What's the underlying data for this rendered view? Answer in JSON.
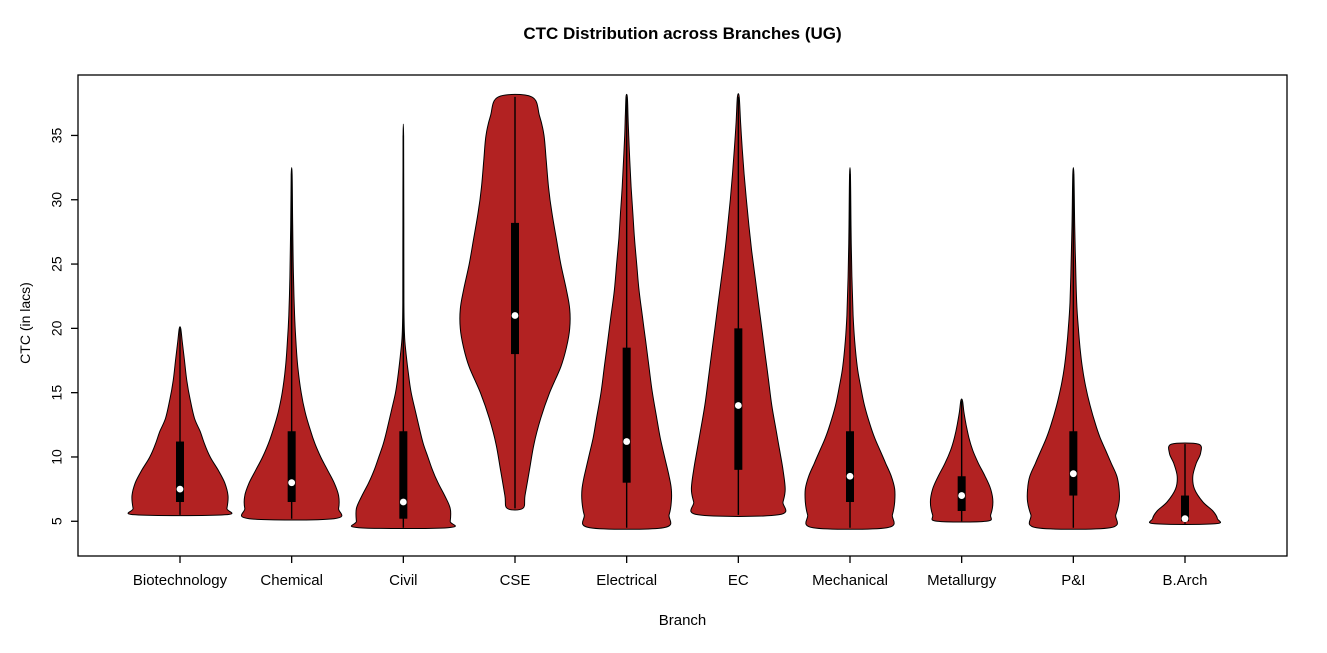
{
  "chart_data": {
    "type": "violin",
    "title": "CTC Distribution across Branches (UG)",
    "xlabel": "Branch",
    "ylabel": "CTC (in lacs)",
    "ylim": [
      2.3,
      39.7
    ],
    "yticks": [
      5,
      10,
      15,
      20,
      25,
      30,
      35
    ],
    "grid": false,
    "legend": "none",
    "fill_color": "#B22222",
    "outline_color": "#000000",
    "box_color": "#000000",
    "median_color": "#ffffff",
    "categories": [
      "Biotechnology",
      "Chemical",
      "Civil",
      "CSE",
      "Electrical",
      "EC",
      "Mechanical",
      "Metallurgy",
      "P&I",
      "B.Arch"
    ],
    "violins": [
      {
        "branch": "Biotechnology",
        "min": 5.5,
        "max": 20,
        "q1": 6.5,
        "q3": 11.2,
        "median": 7.5,
        "shape": [
          [
            5.5,
            0.4
          ],
          [
            6.0,
            0.42
          ],
          [
            7.0,
            0.43
          ],
          [
            8.0,
            0.4
          ],
          [
            9.0,
            0.34
          ],
          [
            10.0,
            0.27
          ],
          [
            11.0,
            0.22
          ],
          [
            12.0,
            0.18
          ],
          [
            13.0,
            0.13
          ],
          [
            14.5,
            0.09
          ],
          [
            16.0,
            0.06
          ],
          [
            17.5,
            0.04
          ],
          [
            19.0,
            0.02
          ],
          [
            20.0,
            0.006
          ]
        ]
      },
      {
        "branch": "Chemical",
        "min": 5.2,
        "max": 32,
        "q1": 6.5,
        "q3": 12,
        "median": 8,
        "shape": [
          [
            5.2,
            0.38
          ],
          [
            6.0,
            0.42
          ],
          [
            7.0,
            0.42
          ],
          [
            8.0,
            0.38
          ],
          [
            9.0,
            0.32
          ],
          [
            10.0,
            0.26
          ],
          [
            11.0,
            0.21
          ],
          [
            12.0,
            0.17
          ],
          [
            13.5,
            0.12
          ],
          [
            15.0,
            0.085
          ],
          [
            17.0,
            0.055
          ],
          [
            19.0,
            0.038
          ],
          [
            21.0,
            0.026
          ],
          [
            24.0,
            0.016
          ],
          [
            28.0,
            0.009
          ],
          [
            32.0,
            0.004
          ]
        ]
      },
      {
        "branch": "Civil",
        "min": 4.5,
        "max": 35,
        "q1": 5.2,
        "q3": 12,
        "median": 6.5,
        "shape": [
          [
            4.5,
            0.4
          ],
          [
            5.0,
            0.42
          ],
          [
            6.0,
            0.42
          ],
          [
            7.0,
            0.37
          ],
          [
            8.0,
            0.31
          ],
          [
            9.0,
            0.26
          ],
          [
            10.0,
            0.22
          ],
          [
            11.0,
            0.18
          ],
          [
            12.0,
            0.15
          ],
          [
            13.5,
            0.11
          ],
          [
            15.0,
            0.07
          ],
          [
            16.5,
            0.045
          ],
          [
            18.0,
            0.025
          ],
          [
            19.5,
            0.01
          ],
          [
            22.0,
            0.005
          ],
          [
            28.0,
            0.004
          ],
          [
            35.0,
            0.002
          ]
        ]
      },
      {
        "branch": "CSE",
        "min": 6,
        "max": 38,
        "q1": 18,
        "q3": 28.2,
        "median": 21,
        "shape": [
          [
            6.0,
            0.07
          ],
          [
            7.0,
            0.09
          ],
          [
            9.0,
            0.13
          ],
          [
            11.0,
            0.17
          ],
          [
            13.0,
            0.23
          ],
          [
            15.0,
            0.31
          ],
          [
            17.0,
            0.41
          ],
          [
            18.5,
            0.46
          ],
          [
            20.0,
            0.49
          ],
          [
            21.5,
            0.49
          ],
          [
            23.0,
            0.46
          ],
          [
            25.0,
            0.41
          ],
          [
            27.0,
            0.37
          ],
          [
            29.0,
            0.33
          ],
          [
            31.0,
            0.3
          ],
          [
            33.0,
            0.28
          ],
          [
            35.0,
            0.26
          ],
          [
            36.5,
            0.22
          ],
          [
            38.0,
            0.15
          ]
        ]
      },
      {
        "branch": "Electrical",
        "min": 4.5,
        "max": 38,
        "q1": 8,
        "q3": 18.5,
        "median": 11.2,
        "shape": [
          [
            4.5,
            0.33
          ],
          [
            5.5,
            0.38
          ],
          [
            6.5,
            0.4
          ],
          [
            7.5,
            0.4
          ],
          [
            8.5,
            0.38
          ],
          [
            10.0,
            0.34
          ],
          [
            11.5,
            0.3
          ],
          [
            13.0,
            0.27
          ],
          [
            15.0,
            0.23
          ],
          [
            17.0,
            0.2
          ],
          [
            19.0,
            0.17
          ],
          [
            21.0,
            0.14
          ],
          [
            23.0,
            0.11
          ],
          [
            25.0,
            0.09
          ],
          [
            27.0,
            0.07
          ],
          [
            29.0,
            0.055
          ],
          [
            31.0,
            0.04
          ],
          [
            33.0,
            0.028
          ],
          [
            35.0,
            0.018
          ],
          [
            36.5,
            0.012
          ],
          [
            38.0,
            0.006
          ]
        ]
      },
      {
        "branch": "EC",
        "min": 5.5,
        "max": 38,
        "q1": 9,
        "q3": 20,
        "median": 14,
        "shape": [
          [
            5.5,
            0.36
          ],
          [
            6.5,
            0.4
          ],
          [
            7.5,
            0.42
          ],
          [
            9.0,
            0.4
          ],
          [
            10.5,
            0.37
          ],
          [
            12.0,
            0.34
          ],
          [
            14.0,
            0.3
          ],
          [
            16.0,
            0.27
          ],
          [
            18.0,
            0.24
          ],
          [
            20.0,
            0.21
          ],
          [
            22.0,
            0.18
          ],
          [
            24.0,
            0.15
          ],
          [
            26.0,
            0.12
          ],
          [
            28.0,
            0.095
          ],
          [
            30.0,
            0.072
          ],
          [
            32.0,
            0.052
          ],
          [
            34.0,
            0.035
          ],
          [
            36.0,
            0.02
          ],
          [
            38.0,
            0.008
          ]
        ]
      },
      {
        "branch": "Mechanical",
        "min": 4.5,
        "max": 32,
        "q1": 6.5,
        "q3": 12,
        "median": 8.5,
        "shape": [
          [
            4.5,
            0.33
          ],
          [
            5.5,
            0.38
          ],
          [
            6.5,
            0.4
          ],
          [
            7.5,
            0.4
          ],
          [
            8.5,
            0.37
          ],
          [
            9.5,
            0.32
          ],
          [
            10.5,
            0.27
          ],
          [
            11.5,
            0.22
          ],
          [
            12.5,
            0.18
          ],
          [
            14.0,
            0.13
          ],
          [
            15.5,
            0.095
          ],
          [
            17.0,
            0.065
          ],
          [
            19.0,
            0.042
          ],
          [
            21.0,
            0.028
          ],
          [
            24.0,
            0.017
          ],
          [
            28.0,
            0.009
          ],
          [
            32.0,
            0.004
          ]
        ]
      },
      {
        "branch": "Metallurgy",
        "min": 5,
        "max": 14.4,
        "q1": 5.8,
        "q3": 8.5,
        "median": 7,
        "shape": [
          [
            5.0,
            0.22
          ],
          [
            5.5,
            0.26
          ],
          [
            6.5,
            0.28
          ],
          [
            7.5,
            0.26
          ],
          [
            8.5,
            0.21
          ],
          [
            9.5,
            0.15
          ],
          [
            10.5,
            0.1
          ],
          [
            11.5,
            0.065
          ],
          [
            12.5,
            0.04
          ],
          [
            13.5,
            0.02
          ],
          [
            14.4,
            0.007
          ]
        ]
      },
      {
        "branch": "P&I",
        "min": 4.5,
        "max": 32,
        "q1": 7,
        "q3": 12,
        "median": 8.7,
        "shape": [
          [
            4.5,
            0.33
          ],
          [
            5.5,
            0.38
          ],
          [
            6.5,
            0.41
          ],
          [
            7.5,
            0.41
          ],
          [
            8.5,
            0.39
          ],
          [
            9.5,
            0.34
          ],
          [
            10.5,
            0.29
          ],
          [
            11.5,
            0.24
          ],
          [
            12.5,
            0.2
          ],
          [
            14.0,
            0.15
          ],
          [
            15.5,
            0.11
          ],
          [
            17.0,
            0.08
          ],
          [
            18.5,
            0.06
          ],
          [
            20.0,
            0.045
          ],
          [
            22.0,
            0.03
          ],
          [
            25.0,
            0.02
          ],
          [
            28.0,
            0.012
          ],
          [
            32.0,
            0.005
          ]
        ]
      },
      {
        "branch": "B.Arch",
        "min": 4.8,
        "max": 11,
        "q1": 5,
        "q3": 7,
        "median": 5.2,
        "shape": [
          [
            4.8,
            0.27
          ],
          [
            5.2,
            0.29
          ],
          [
            5.8,
            0.25
          ],
          [
            6.5,
            0.16
          ],
          [
            7.5,
            0.085
          ],
          [
            8.5,
            0.07
          ],
          [
            9.5,
            0.1
          ],
          [
            10.3,
            0.14
          ],
          [
            11.0,
            0.12
          ]
        ]
      }
    ]
  }
}
